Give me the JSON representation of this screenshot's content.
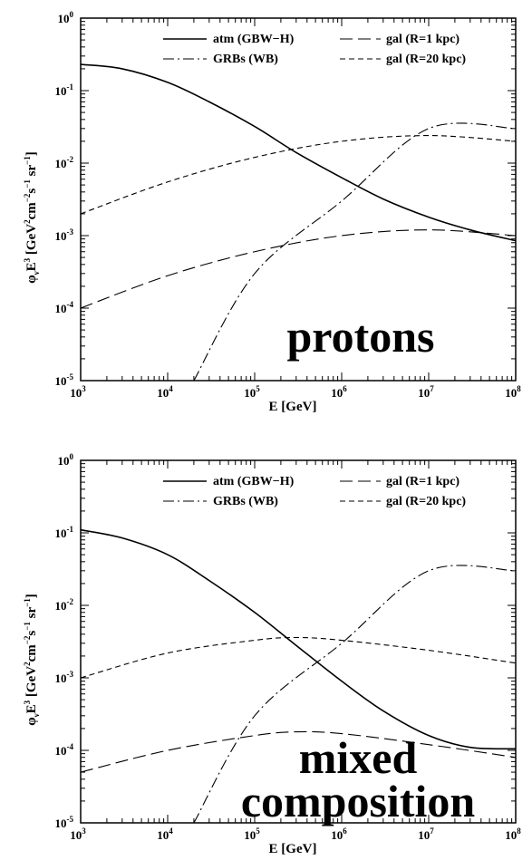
{
  "chart_data": [
    {
      "type": "line",
      "annotation": [
        "protons"
      ],
      "xlabel": "E [GeV]",
      "ylabel": "φνE³ [GeV²cm⁻²s⁻¹sr⁻¹]",
      "ylabel_parts": [
        {
          "t": "φ",
          "v": "base"
        },
        {
          "t": "ν",
          "v": "sub"
        },
        {
          "t": "E",
          "v": "base"
        },
        {
          "t": "3",
          "v": "sup"
        },
        {
          "t": " [GeV",
          "v": "base"
        },
        {
          "t": "2",
          "v": "sup"
        },
        {
          "t": "cm",
          "v": "base"
        },
        {
          "t": "−2",
          "v": "sup"
        },
        {
          "t": "s",
          "v": "base"
        },
        {
          "t": "−1",
          "v": "sup"
        },
        {
          "t": " sr",
          "v": "base"
        },
        {
          "t": "−1",
          "v": "sup"
        },
        {
          "t": "]",
          "v": "base"
        }
      ],
      "x_scale": "log",
      "y_scale": "log",
      "xlim": [
        1000,
        100000000
      ],
      "ylim": [
        1e-05,
        1
      ],
      "x_ticks": [
        {
          "base": "10",
          "exp": "3"
        },
        {
          "base": "10",
          "exp": "4"
        },
        {
          "base": "10",
          "exp": "5"
        },
        {
          "base": "10",
          "exp": "6"
        },
        {
          "base": "10",
          "exp": "7"
        },
        {
          "base": "10",
          "exp": "8"
        }
      ],
      "y_ticks": [
        {
          "base": "10",
          "exp": "-5"
        },
        {
          "base": "10",
          "exp": "-4"
        },
        {
          "base": "10",
          "exp": "-3"
        },
        {
          "base": "10",
          "exp": "-2"
        },
        {
          "base": "10",
          "exp": "-1"
        },
        {
          "base": "10",
          "exp": "0"
        }
      ],
      "legend_position": "top-right",
      "series": [
        {
          "name": "atm (GBW−H)",
          "style": "solid",
          "x": [
            1000,
            3000,
            10000,
            30000,
            100000,
            300000,
            1000000,
            3000000,
            10000000,
            30000000,
            100000000
          ],
          "y": [
            0.23,
            0.2,
            0.13,
            0.07,
            0.032,
            0.014,
            0.0063,
            0.0032,
            0.0018,
            0.0012,
            0.00085
          ]
        },
        {
          "name": "GRBs (WB)",
          "style": "dashdot",
          "x": [
            20000,
            100000,
            1000000,
            10000000,
            100000000
          ],
          "y": [
            1e-05,
            0.0003,
            0.003,
            0.03,
            0.03
          ]
        },
        {
          "name": "gal (R=1 kpc)",
          "style": "longdash",
          "x": [
            1000,
            10000,
            100000,
            1000000,
            10000000,
            100000000
          ],
          "y": [
            0.0001,
            0.00028,
            0.0006,
            0.001,
            0.0012,
            0.001
          ]
        },
        {
          "name": "gal (R=20 kpc)",
          "style": "shortdash",
          "x": [
            1000,
            10000,
            100000,
            1000000,
            10000000,
            100000000
          ],
          "y": [
            0.002,
            0.0055,
            0.012,
            0.02,
            0.024,
            0.02
          ]
        }
      ]
    },
    {
      "type": "line",
      "annotation": [
        "mixed",
        "composition"
      ],
      "xlabel": "E [GeV]",
      "ylabel": "φνE³ [GeV²cm⁻²s⁻¹sr⁻¹]",
      "ylabel_parts": [
        {
          "t": "φ",
          "v": "base"
        },
        {
          "t": "ν",
          "v": "sub"
        },
        {
          "t": "E",
          "v": "base"
        },
        {
          "t": "3",
          "v": "sup"
        },
        {
          "t": " [GeV",
          "v": "base"
        },
        {
          "t": "2",
          "v": "sup"
        },
        {
          "t": "cm",
          "v": "base"
        },
        {
          "t": "−2",
          "v": "sup"
        },
        {
          "t": "s",
          "v": "base"
        },
        {
          "t": "−1",
          "v": "sup"
        },
        {
          "t": " sr",
          "v": "base"
        },
        {
          "t": "−1",
          "v": "sup"
        },
        {
          "t": "]",
          "v": "base"
        }
      ],
      "x_scale": "log",
      "y_scale": "log",
      "xlim": [
        1000,
        100000000
      ],
      "ylim": [
        1e-05,
        1
      ],
      "x_ticks": [
        {
          "base": "10",
          "exp": "3"
        },
        {
          "base": "10",
          "exp": "4"
        },
        {
          "base": "10",
          "exp": "5"
        },
        {
          "base": "10",
          "exp": "6"
        },
        {
          "base": "10",
          "exp": "7"
        },
        {
          "base": "10",
          "exp": "8"
        }
      ],
      "y_ticks": [
        {
          "base": "10",
          "exp": "-5"
        },
        {
          "base": "10",
          "exp": "-4"
        },
        {
          "base": "10",
          "exp": "-3"
        },
        {
          "base": "10",
          "exp": "-2"
        },
        {
          "base": "10",
          "exp": "-1"
        },
        {
          "base": "10",
          "exp": "0"
        }
      ],
      "legend_position": "top-right",
      "series": [
        {
          "name": "atm (GBW−H)",
          "style": "solid",
          "x": [
            1000,
            3000,
            10000,
            30000,
            100000,
            300000,
            1000000,
            3000000,
            10000000,
            30000000,
            100000000
          ],
          "y": [
            0.11,
            0.085,
            0.05,
            0.022,
            0.008,
            0.0028,
            0.0009,
            0.00035,
            0.00016,
            0.00011,
            0.000105
          ]
        },
        {
          "name": "GRBs (WB)",
          "style": "dashdot",
          "x": [
            20000,
            100000,
            1000000,
            10000000,
            100000000
          ],
          "y": [
            1e-05,
            0.0003,
            0.003,
            0.03,
            0.03
          ]
        },
        {
          "name": "gal (R=1 kpc)",
          "style": "longdash",
          "x": [
            1000,
            10000,
            100000,
            300000,
            1000000,
            10000000,
            100000000
          ],
          "y": [
            5e-05,
            0.0001,
            0.00016,
            0.00018,
            0.00017,
            0.00012,
            8e-05
          ]
        },
        {
          "name": "gal (R=20 kpc)",
          "style": "shortdash",
          "x": [
            1000,
            10000,
            100000,
            300000,
            1000000,
            10000000,
            100000000
          ],
          "y": [
            0.001,
            0.0022,
            0.0033,
            0.0036,
            0.0033,
            0.0024,
            0.0016
          ]
        }
      ]
    }
  ]
}
